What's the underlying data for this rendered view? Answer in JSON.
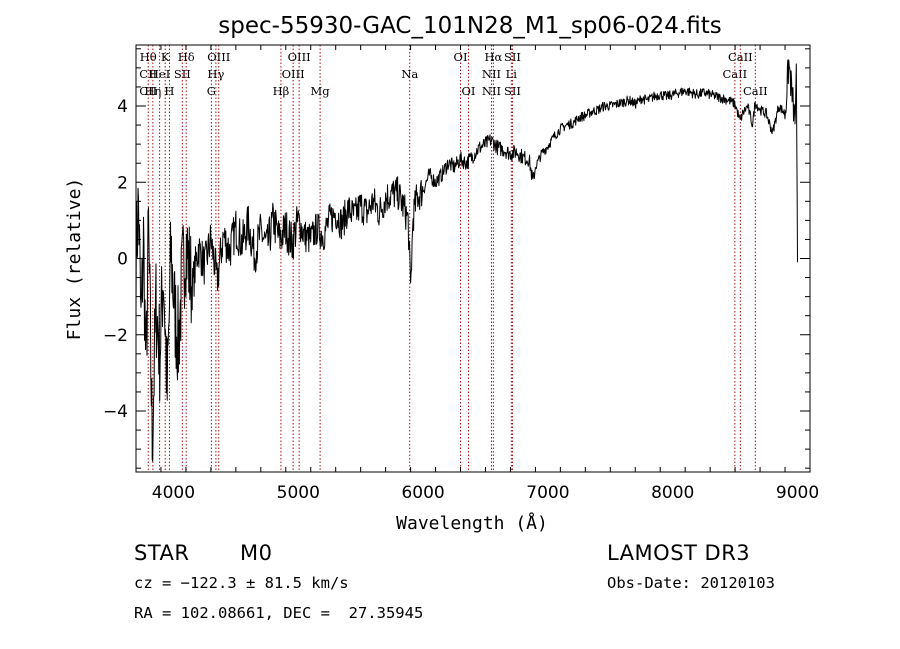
{
  "chart_data": {
    "type": "line",
    "title": "spec-55930-GAC_101N28_M1_sp06-024.fits",
    "xlabel": "Wavelength (Å)",
    "ylabel": "Flux (relative)",
    "xlim": [
      3700,
      9100
    ],
    "ylim": [
      -5.6,
      5.6
    ],
    "x_ticks": [
      4000,
      5000,
      6000,
      7000,
      8000,
      9000
    ],
    "y_ticks": [
      -4,
      -2,
      0,
      2,
      4
    ],
    "x_tick_labels": [
      "4000",
      "5000",
      "6000",
      "7000",
      "8000",
      "9000"
    ],
    "y_tick_labels": [
      "−4",
      "−2",
      "0",
      "2",
      "4"
    ],
    "series": [
      {
        "name": "flux",
        "x": [
          3700,
          3720,
          3740,
          3760,
          3780,
          3800,
          3830,
          3860,
          3890,
          3920,
          3950,
          3980,
          4010,
          4040,
          4070,
          4100,
          4150,
          4200,
          4250,
          4300,
          4350,
          4400,
          4450,
          4500,
          4550,
          4600,
          4650,
          4700,
          4750,
          4800,
          4850,
          4900,
          4950,
          5000,
          5050,
          5100,
          5150,
          5200,
          5250,
          5300,
          5350,
          5400,
          5450,
          5500,
          5550,
          5600,
          5650,
          5700,
          5750,
          5800,
          5850,
          5880,
          5900,
          5920,
          5950,
          6000,
          6050,
          6100,
          6150,
          6200,
          6250,
          6300,
          6350,
          6400,
          6450,
          6500,
          6540,
          6563,
          6600,
          6650,
          6700,
          6750,
          6800,
          6850,
          6880,
          6900,
          6950,
          7000,
          7050,
          7100,
          7150,
          7200,
          7250,
          7300,
          7350,
          7400,
          7450,
          7500,
          7550,
          7600,
          7650,
          7700,
          7750,
          7800,
          7850,
          7900,
          7950,
          8000,
          8050,
          8100,
          8150,
          8200,
          8250,
          8300,
          8350,
          8400,
          8450,
          8500,
          8540,
          8560,
          8600,
          8640,
          8660,
          8700,
          8750,
          8800,
          8850,
          8900,
          8930,
          8960,
          8980,
          8990,
          9000
        ],
        "y": [
          0.0,
          1.5,
          -1.8,
          0.5,
          -3.0,
          0.8,
          -4.8,
          -1.2,
          -2.5,
          -0.3,
          -3.6,
          0.2,
          -1.4,
          -2.2,
          -0.5,
          0.4,
          -0.8,
          0.3,
          -0.2,
          0.5,
          -0.6,
          0.6,
          0.2,
          0.8,
          0.4,
          0.9,
          0.1,
          0.7,
          0.3,
          1.0,
          0.5,
          0.8,
          0.4,
          1.0,
          0.6,
          0.5,
          0.8,
          0.6,
          1.0,
          1.2,
          0.9,
          1.3,
          1.1,
          1.4,
          1.2,
          1.5,
          1.2,
          1.6,
          1.7,
          1.7,
          1.3,
          1.0,
          -0.8,
          1.1,
          1.6,
          1.8,
          2.2,
          2.0,
          2.2,
          2.5,
          2.4,
          2.6,
          2.5,
          2.7,
          2.9,
          3.0,
          3.1,
          3.05,
          2.9,
          2.85,
          2.75,
          2.8,
          2.65,
          2.6,
          2.0,
          2.4,
          2.75,
          2.95,
          3.2,
          3.4,
          3.5,
          3.55,
          3.7,
          3.75,
          3.85,
          3.9,
          4.0,
          4.0,
          4.05,
          4.1,
          4.15,
          4.05,
          4.2,
          4.15,
          4.25,
          4.3,
          4.25,
          4.3,
          4.35,
          4.4,
          4.35,
          4.3,
          4.35,
          4.3,
          4.25,
          4.2,
          4.15,
          4.05,
          3.6,
          3.8,
          4.0,
          3.5,
          4.1,
          3.9,
          3.8,
          3.3,
          4.0,
          3.8,
          5.1,
          4.2,
          3.6,
          4.7,
          -0.1
        ]
      }
    ],
    "lines": [
      {
        "x": 3798,
        "labels": [
          "Hθ",
          "CII",
          "CII"
        ]
      },
      {
        "x": 3835,
        "labels": [
          "",
          "",
          "Hη"
        ]
      },
      {
        "x": 3889,
        "labels": [
          "",
          "HeI",
          ""
        ]
      },
      {
        "x": 3934,
        "labels": [
          "K",
          "",
          ""
        ]
      },
      {
        "x": 3968,
        "labels": [
          "",
          "",
          "H"
        ]
      },
      {
        "x": 4071,
        "labels": [
          "",
          "SII",
          ""
        ]
      },
      {
        "x": 4102,
        "labels": [
          "Hδ",
          "",
          ""
        ]
      },
      {
        "x": 4304,
        "labels": [
          "",
          "",
          "G"
        ]
      },
      {
        "x": 4340,
        "labels": [
          "",
          "Hγ",
          ""
        ]
      },
      {
        "x": 4363,
        "labels": [
          "OIII",
          "",
          ""
        ]
      },
      {
        "x": 4861,
        "labels": [
          "",
          "",
          "Hβ"
        ]
      },
      {
        "x": 4959,
        "labels": [
          "",
          "OIII",
          ""
        ]
      },
      {
        "x": 5007,
        "labels": [
          "OIII",
          "",
          ""
        ]
      },
      {
        "x": 5175,
        "labels": [
          "",
          "",
          "Mg"
        ]
      },
      {
        "x": 5893,
        "labels": [
          "",
          "Na",
          ""
        ]
      },
      {
        "x": 6300,
        "labels": [
          "OI",
          "",
          ""
        ]
      },
      {
        "x": 6364,
        "labels": [
          "",
          "",
          "OI"
        ]
      },
      {
        "x": 6548,
        "labels": [
          "",
          "NII",
          "NII"
        ]
      },
      {
        "x": 6563,
        "labels": [
          "Hα",
          "",
          ""
        ]
      },
      {
        "x": 6707,
        "labels": [
          "",
          "Li",
          ""
        ]
      },
      {
        "x": 6716,
        "labels": [
          "SII",
          "",
          "SII"
        ]
      },
      {
        "x": 8498,
        "labels": [
          "",
          "CaII",
          ""
        ]
      },
      {
        "x": 8542,
        "labels": [
          "CaII",
          "",
          ""
        ]
      },
      {
        "x": 8662,
        "labels": [
          "",
          "",
          "CaII"
        ]
      }
    ]
  },
  "info": {
    "class": "STAR",
    "subclass": "M0",
    "survey": "LAMOST DR3",
    "cz": "cz = −122.3 ± 81.5 km/s",
    "obs_date": "Obs-Date: 20120103",
    "radec": "RA = 102.08661, DEC =  27.35945"
  },
  "colors": {
    "line": "#000000",
    "marker": "#b01010",
    "background": "#ffffff"
  }
}
